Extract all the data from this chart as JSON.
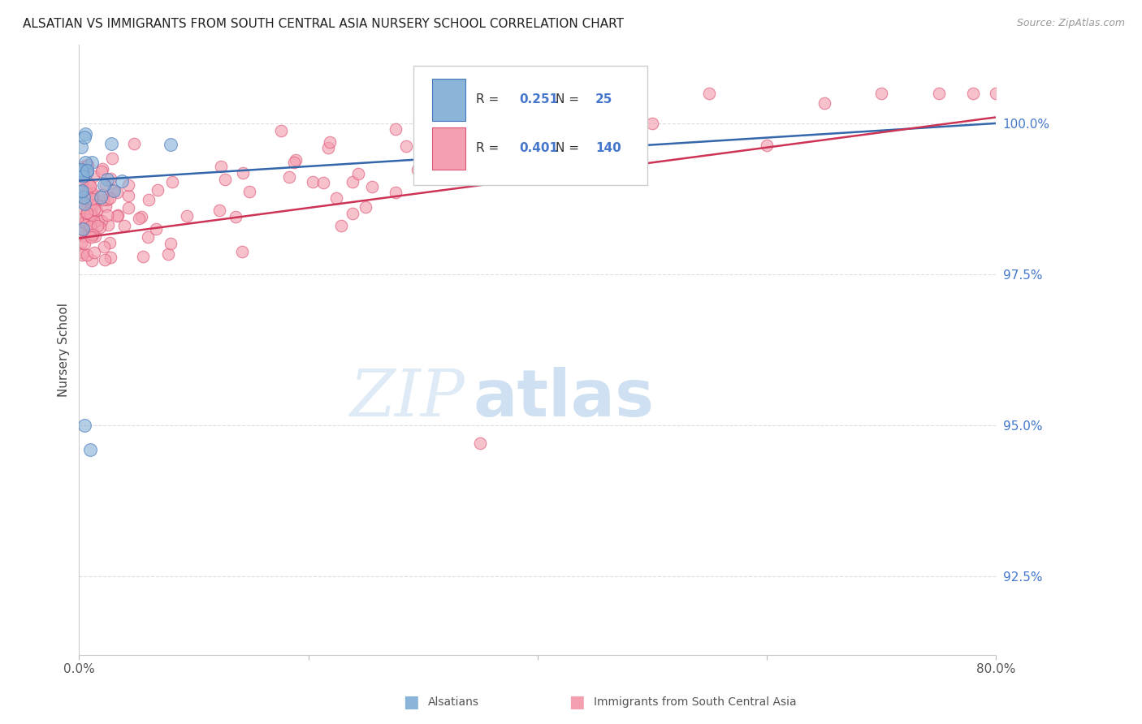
{
  "title": "ALSATIAN VS IMMIGRANTS FROM SOUTH CENTRAL ASIA NURSERY SCHOOL CORRELATION CHART",
  "source": "Source: ZipAtlas.com",
  "ylabel": "Nursery School",
  "ytick_labels": [
    "100.0%",
    "97.5%",
    "95.0%",
    "92.5%"
  ],
  "ytick_values": [
    100.0,
    97.5,
    95.0,
    92.5
  ],
  "xlim": [
    0.0,
    80.0
  ],
  "ylim": [
    91.2,
    101.3
  ],
  "legend_labels": [
    "Alsatians",
    "Immigrants from South Central Asia"
  ],
  "legend_R": [
    0.251,
    0.401
  ],
  "legend_N": [
    25,
    140
  ],
  "blue_color": "#8AB4D8",
  "pink_color": "#F4A0B0",
  "blue_line_color": "#3366AA",
  "pink_line_color": "#CC3355",
  "blue_edge_color": "#4477BB",
  "pink_edge_color": "#DD5577",
  "watermark_zip_color": "#C8DCF0",
  "watermark_atlas_color": "#A8C8E8",
  "grid_color": "#DDDDDD",
  "right_tick_color": "#4477CC"
}
